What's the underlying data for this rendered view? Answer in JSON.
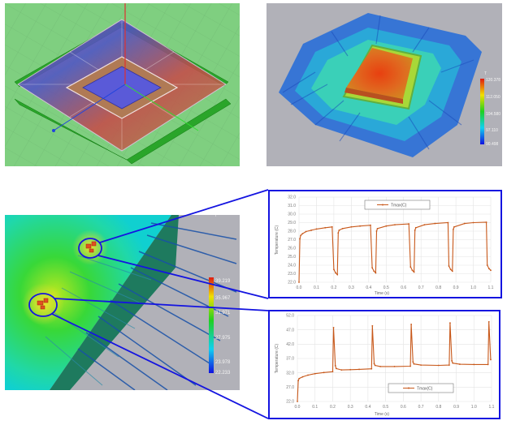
{
  "figure": {
    "panels": [
      {
        "id": "geometry-model",
        "description": "QFP package 3D wireframe model with colored leads on green grid"
      },
      {
        "id": "thermal-contour",
        "description": "QFP package steady-state temperature contour"
      },
      {
        "id": "detail-contour",
        "description": "Close-up temperature contour of chip with two hotspot regions circled"
      }
    ],
    "thermal_legend": {
      "title": "T",
      "ticks": [
        "120.378",
        "112.050",
        "104.580",
        "97.110",
        "90.498"
      ]
    },
    "detail_legend": {
      "title": "T",
      "ticks": [
        "39.219",
        "35.967",
        "31.971",
        "27.975",
        "23.978",
        "22.233"
      ]
    },
    "callout_color": "#1414e0"
  },
  "chart_data": [
    {
      "type": "line",
      "title": "",
      "xlabel": "Time (s)",
      "ylabel": "Temperature (C)",
      "xlim": [
        0.0,
        1.1
      ],
      "ylim": [
        22.0,
        32.0
      ],
      "xticks": [
        "0.0",
        "0.1",
        "0.2",
        "0.3",
        "0.4",
        "0.5",
        "0.6",
        "0.7",
        "0.8",
        "0.9",
        "1.0",
        "1.1"
      ],
      "yticks": [
        "32.0",
        "31.0",
        "30.0",
        "29.0",
        "28.0",
        "27.0",
        "26.0",
        "25.0",
        "24.0",
        "23.0",
        "22.0"
      ],
      "grid": true,
      "legend_position": "top-center",
      "series": [
        {
          "name": "Tmax(C)",
          "color": "#c8581a",
          "x": [
            0,
            0.005,
            0.01,
            0.02,
            0.04,
            0.07,
            0.1,
            0.15,
            0.19,
            0.2,
            0.21,
            0.22,
            0.225,
            0.23,
            0.25,
            0.3,
            0.35,
            0.41,
            0.42,
            0.43,
            0.44,
            0.445,
            0.45,
            0.5,
            0.55,
            0.63,
            0.64,
            0.65,
            0.66,
            0.665,
            0.67,
            0.72,
            0.78,
            0.855,
            0.86,
            0.87,
            0.88,
            0.885,
            0.89,
            0.95,
            1.0,
            1.075,
            1.08,
            1.09,
            1.1
          ],
          "values": [
            22.0,
            27.1,
            27.5,
            27.7,
            27.95,
            28.1,
            28.25,
            28.4,
            28.5,
            23.5,
            23.1,
            22.9,
            27.8,
            28.1,
            28.3,
            28.5,
            28.6,
            28.7,
            23.7,
            23.3,
            23.1,
            28.0,
            28.3,
            28.6,
            28.75,
            28.85,
            23.8,
            23.4,
            23.2,
            28.1,
            28.4,
            28.75,
            28.9,
            29.0,
            23.9,
            23.5,
            23.3,
            28.2,
            28.5,
            28.9,
            29.0,
            29.05,
            24.0,
            23.6,
            23.4
          ]
        }
      ]
    },
    {
      "type": "line",
      "title": "",
      "xlabel": "Time (s)",
      "ylabel": "Temperature (C)",
      "xlim": [
        0.0,
        1.1
      ],
      "ylim": [
        22.0,
        52.0
      ],
      "xticks": [
        "0.0",
        "0.1",
        "0.2",
        "0.3",
        "0.4",
        "0.5",
        "0.6",
        "0.7",
        "0.8",
        "0.9",
        "1.0",
        "1.1"
      ],
      "yticks": [
        "52.0",
        "47.0",
        "42.0",
        "37.0",
        "32.0",
        "27.0",
        "22.0"
      ],
      "grid": true,
      "legend_position": "lower-right",
      "series": [
        {
          "name": "Tmax(C)",
          "color": "#c8581a",
          "x": [
            0,
            0.005,
            0.01,
            0.03,
            0.06,
            0.1,
            0.15,
            0.2,
            0.205,
            0.215,
            0.22,
            0.25,
            0.3,
            0.35,
            0.42,
            0.425,
            0.435,
            0.44,
            0.47,
            0.55,
            0.64,
            0.645,
            0.655,
            0.66,
            0.7,
            0.8,
            0.86,
            0.865,
            0.875,
            0.88,
            0.92,
            1.0,
            1.08,
            1.085,
            1.095
          ],
          "values": [
            22.0,
            29.3,
            30.0,
            30.6,
            31.2,
            31.7,
            32.1,
            32.4,
            47.8,
            34.5,
            33.5,
            33.0,
            33.1,
            33.2,
            33.4,
            48.4,
            35.2,
            34.6,
            34.2,
            34.2,
            34.3,
            48.9,
            35.8,
            35.1,
            34.7,
            34.6,
            34.7,
            49.4,
            36.2,
            35.4,
            35.0,
            34.9,
            34.9,
            49.8,
            36.6
          ]
        }
      ]
    }
  ]
}
